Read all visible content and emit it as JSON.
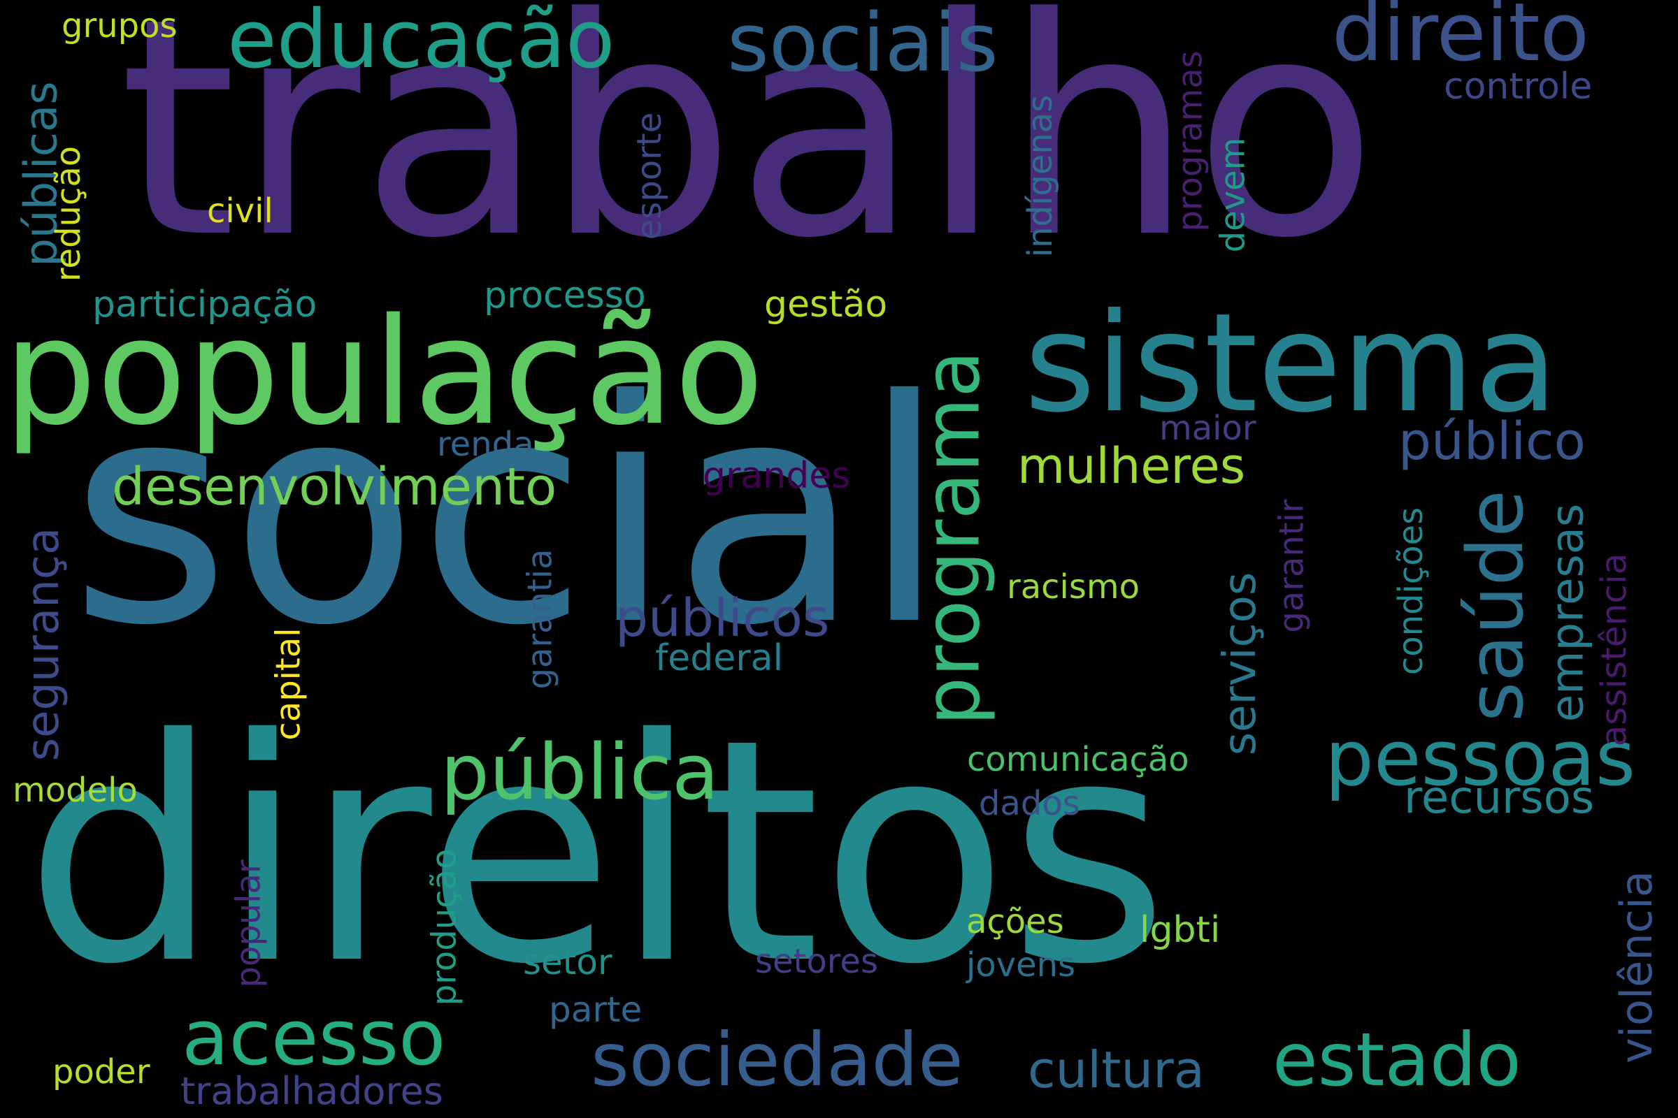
{
  "background": "#000000",
  "words": [
    {
      "text": "trabalho",
      "color": "#472c7a"
    },
    {
      "text": "social",
      "color": "#2c6d8e"
    },
    {
      "text": "direitos",
      "color": "#22898d"
    },
    {
      "text": "população",
      "color": "#5ec962"
    },
    {
      "text": "sistema",
      "color": "#26818e"
    },
    {
      "text": "educação",
      "color": "#1f9e89"
    },
    {
      "text": "sociais",
      "color": "#32648e"
    },
    {
      "text": "direito",
      "color": "#3b528b"
    },
    {
      "text": "pública",
      "color": "#4ec36b"
    },
    {
      "text": "pessoas",
      "color": "#23898e"
    },
    {
      "text": "programa",
      "color": "#35b779"
    },
    {
      "text": "saúde",
      "color": "#2c718e"
    },
    {
      "text": "acesso",
      "color": "#26ad81"
    },
    {
      "text": "sociedade",
      "color": "#365d8d"
    },
    {
      "text": "estado",
      "color": "#21a585"
    },
    {
      "text": "desenvolvimento",
      "color": "#73d056"
    },
    {
      "text": "públicos",
      "color": "#3e4a89"
    },
    {
      "text": "público",
      "color": "#39568c"
    },
    {
      "text": "mulheres",
      "color": "#a0da39"
    },
    {
      "text": "cultura",
      "color": "#31688e"
    },
    {
      "text": "serviços",
      "color": "#2a788e"
    },
    {
      "text": "empresas",
      "color": "#287d8e"
    },
    {
      "text": "recursos",
      "color": "#24868e"
    },
    {
      "text": "violência",
      "color": "#3a548c"
    },
    {
      "text": "assistência",
      "color": "#481b6d"
    },
    {
      "text": "segurança",
      "color": "#3e4a89"
    },
    {
      "text": "públicas",
      "color": "#2a778e"
    },
    {
      "text": "trabalhadores",
      "color": "#414287"
    },
    {
      "text": "participação",
      "color": "#1f958b"
    },
    {
      "text": "processo",
      "color": "#1f9a8a"
    },
    {
      "text": "gestão",
      "color": "#b5de2b"
    },
    {
      "text": "controle",
      "color": "#3f4889"
    },
    {
      "text": "grupos",
      "color": "#c2df23"
    },
    {
      "text": "civil",
      "color": "#dde318"
    },
    {
      "text": "redução",
      "color": "#d2e21b"
    },
    {
      "text": "esporte",
      "color": "#3e4989"
    },
    {
      "text": "indígenas",
      "color": "#2e6e8e"
    },
    {
      "text": "programas",
      "color": "#482071"
    },
    {
      "text": "devem",
      "color": "#1e9c89"
    },
    {
      "text": "renda",
      "color": "#31668e"
    },
    {
      "text": "maior",
      "color": "#433e85"
    },
    {
      "text": "grandes",
      "color": "#440154"
    },
    {
      "text": "garantir",
      "color": "#482979"
    },
    {
      "text": "condições",
      "color": "#23898e"
    },
    {
      "text": "racismo",
      "color": "#9bd93c"
    },
    {
      "text": "garantia",
      "color": "#355f8d"
    },
    {
      "text": "federal",
      "color": "#277f8e"
    },
    {
      "text": "capital",
      "color": "#fde725"
    },
    {
      "text": "comunicação",
      "color": "#4ac16d"
    },
    {
      "text": "dados",
      "color": "#3b528b"
    },
    {
      "text": "modelo",
      "color": "#a8db34"
    },
    {
      "text": "popular",
      "color": "#482878"
    },
    {
      "text": "produção",
      "color": "#1f9e89"
    },
    {
      "text": "ações",
      "color": "#9fda3a"
    },
    {
      "text": "lgbti",
      "color": "#86d549"
    },
    {
      "text": "setor",
      "color": "#20938c"
    },
    {
      "text": "setores",
      "color": "#433e85"
    },
    {
      "text": "jovens",
      "color": "#2d708e"
    },
    {
      "text": "parte",
      "color": "#31678e"
    },
    {
      "text": "poder",
      "color": "#b8de29"
    }
  ]
}
